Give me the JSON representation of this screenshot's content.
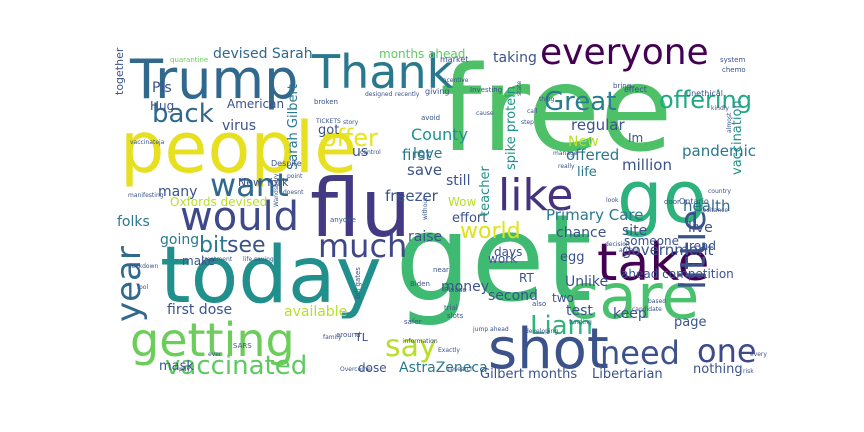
{
  "wordcloud": {
    "words": [
      {
        "t": "free",
        "c": "#4ec068"
      },
      {
        "t": "get",
        "c": "#3fba72"
      },
      {
        "t": "today",
        "c": "#21908c"
      },
      {
        "t": "people",
        "c": "#e6e021"
      },
      {
        "t": "flu",
        "c": "#443a83"
      },
      {
        "t": "Trump",
        "c": "#31688e"
      },
      {
        "t": "care",
        "c": "#4ac16d"
      },
      {
        "t": "go",
        "c": "#2db27d"
      },
      {
        "t": "Thank",
        "c": "#2a788e"
      },
      {
        "t": "shot",
        "c": "#3b528b"
      },
      {
        "t": "take",
        "c": "#440154"
      },
      {
        "t": "getting",
        "c": "#6ccd5a"
      },
      {
        "t": "would",
        "c": "#3e4989"
      },
      {
        "t": "like",
        "c": "#46337f"
      },
      {
        "t": "everyone",
        "c": "#440154"
      },
      {
        "t": "want",
        "c": "#31688e"
      },
      {
        "t": "much",
        "c": "#3f4788"
      },
      {
        "t": "little",
        "c": "#3b528b"
      },
      {
        "t": "need",
        "c": "#3b528b"
      },
      {
        "t": "one",
        "c": "#3e4a89"
      },
      {
        "t": "year",
        "c": "#31688e"
      },
      {
        "t": "say",
        "c": "#b8de29"
      },
      {
        "t": "vaccinated",
        "c": "#5ec962"
      },
      {
        "t": "back",
        "c": "#31688e"
      },
      {
        "t": "Great",
        "c": "#287d8e"
      },
      {
        "t": "offer",
        "c": "#e7e419"
      },
      {
        "t": "offering",
        "c": "#22a884"
      },
      {
        "t": "Liam",
        "c": "#2fb47c"
      },
      {
        "t": "bit",
        "c": "#2a788e"
      },
      {
        "t": "see",
        "c": "#3b528b"
      },
      {
        "t": "world",
        "c": "#dfe318"
      },
      {
        "t": "Pls",
        "c": "#3b528b"
      },
      {
        "t": "Hug",
        "c": "#3b528b"
      },
      {
        "t": "devised Sarah",
        "c": "#31688e"
      },
      {
        "t": "months ahead",
        "c": "#5ec962"
      },
      {
        "t": "taking",
        "c": "#3b528b"
      },
      {
        "t": "together",
        "c": "#3b528b"
      },
      {
        "t": "American",
        "c": "#3b528b"
      },
      {
        "t": "virus",
        "c": "#3b528b"
      },
      {
        "t": "Sarah Gilbert",
        "c": "#2a788e"
      },
      {
        "t": "got",
        "c": "#3b528b"
      },
      {
        "t": "County",
        "c": "#21918c"
      },
      {
        "t": "us",
        "c": "#3b528b"
      },
      {
        "t": "love",
        "c": "#2a788e"
      },
      {
        "t": "first",
        "c": "#2a788e"
      },
      {
        "t": "save",
        "c": "#3b528b"
      },
      {
        "t": "regular",
        "c": "#3b528b"
      },
      {
        "t": "New",
        "c": "#b8de29"
      },
      {
        "t": "offered",
        "c": "#2a788e"
      },
      {
        "t": "spike protein",
        "c": "#21918c"
      },
      {
        "t": "million",
        "c": "#3b528b"
      },
      {
        "t": "pandemic",
        "c": "#2a788e"
      },
      {
        "t": "vaccination",
        "c": "#21918c"
      },
      {
        "t": "life",
        "c": "#2a788e"
      },
      {
        "t": "health",
        "c": "#31688e"
      },
      {
        "t": "live",
        "c": "#3b528b"
      },
      {
        "t": "site",
        "c": "#3b528b"
      },
      {
        "t": "Im",
        "c": "#3b528b"
      },
      {
        "t": "freezer",
        "c": "#3b528b"
      },
      {
        "t": "still",
        "c": "#3b528b"
      },
      {
        "t": "many",
        "c": "#3b528b"
      },
      {
        "t": "New York",
        "c": "#3b528b"
      },
      {
        "t": "Oxfords devised",
        "c": "#b8de29"
      },
      {
        "t": "folks",
        "c": "#2a788e"
      },
      {
        "t": "Wow",
        "c": "#b8de29"
      },
      {
        "t": "effort",
        "c": "#3b528b"
      },
      {
        "t": "teacher",
        "c": "#21918c"
      },
      {
        "t": "Primary Care",
        "c": "#2a788e"
      },
      {
        "t": "chance",
        "c": "#3b528b"
      },
      {
        "t": "government",
        "c": "#3b528b"
      },
      {
        "t": "going",
        "c": "#2a788e"
      },
      {
        "t": "raise",
        "c": "#3b528b"
      },
      {
        "t": "egg",
        "c": "#3b528b"
      },
      {
        "t": "someone",
        "c": "#3b528b"
      },
      {
        "t": "read",
        "c": "#3b528b"
      },
      {
        "t": "make",
        "c": "#3b528b"
      },
      {
        "t": "work",
        "c": "#3b528b"
      },
      {
        "t": "money",
        "c": "#3b528b"
      },
      {
        "t": "RT",
        "c": "#3b528b"
      },
      {
        "t": "Unlike",
        "c": "#3b528b"
      },
      {
        "t": "ahead competition",
        "c": "#3b528b"
      },
      {
        "t": "two",
        "c": "#3b528b"
      },
      {
        "t": "second",
        "c": "#3b528b"
      },
      {
        "t": "available",
        "c": "#b8de29"
      },
      {
        "t": "first dose",
        "c": "#3b528b"
      },
      {
        "t": "test",
        "c": "#3b528b"
      },
      {
        "t": "keep",
        "c": "#3b528b"
      },
      {
        "t": "page",
        "c": "#3b528b"
      },
      {
        "t": "mask",
        "c": "#3b528b"
      },
      {
        "t": "dose",
        "c": "#3b528b"
      },
      {
        "t": "AstraZeneca",
        "c": "#2a788e"
      },
      {
        "t": "Gilbert months",
        "c": "#3b528b"
      },
      {
        "t": "Libertarian",
        "c": "#3b528b"
      },
      {
        "t": "nothing",
        "c": "#3b528b"
      },
      {
        "t": "days",
        "c": "#3b528b"
      },
      {
        "t": "TL",
        "c": "#3b528b"
      },
      {
        "t": "quarantine",
        "c": "#6ccd5a"
      },
      {
        "t": "market",
        "c": "#3b528b"
      },
      {
        "t": "Investing",
        "c": "#3b528b"
      },
      {
        "t": "giving",
        "c": "#3b528b"
      },
      {
        "t": "designed",
        "c": "#3b528b"
      },
      {
        "t": "recently",
        "c": "#3b528b"
      },
      {
        "t": "Ontario",
        "c": "#3b528b"
      },
      {
        "t": "effect",
        "c": "#3b528b"
      },
      {
        "t": "unethical",
        "c": "#3b528b"
      },
      {
        "t": "bring",
        "c": "#3b528b"
      },
      {
        "t": "door",
        "c": "#3b528b"
      },
      {
        "t": "system",
        "c": "#3b528b"
      },
      {
        "t": "chemo",
        "c": "#3b528b"
      },
      {
        "t": "TICKETS",
        "c": "#3b528b"
      },
      {
        "t": "broken",
        "c": "#3b528b"
      },
      {
        "t": "story",
        "c": "#3b528b"
      },
      {
        "t": "control",
        "c": "#3b528b"
      },
      {
        "t": "Despite",
        "c": "#3b528b"
      },
      {
        "t": "point",
        "c": "#3b528b"
      },
      {
        "t": "lockdown",
        "c": "#3b528b"
      },
      {
        "t": "treatment",
        "c": "#3b528b"
      },
      {
        "t": "life saving",
        "c": "#3b528b"
      },
      {
        "t": "manifesting",
        "c": "#3b528b"
      },
      {
        "t": "vaccinateja",
        "c": "#3b528b"
      },
      {
        "t": "bill gates",
        "c": "#3b528b"
      },
      {
        "t": "Biden",
        "c": "#3b528b"
      },
      {
        "t": "Please",
        "c": "#3b528b"
      },
      {
        "t": "near",
        "c": "#3b528b"
      },
      {
        "t": "trial",
        "c": "#3b528b"
      },
      {
        "t": "slots",
        "c": "#3b528b"
      },
      {
        "t": "also",
        "c": "#3b528b"
      },
      {
        "t": "safer",
        "c": "#3b528b"
      },
      {
        "t": "family",
        "c": "#3b528b"
      },
      {
        "t": "around",
        "c": "#3b528b"
      },
      {
        "t": "information",
        "c": "#3b528b"
      },
      {
        "t": "Exactly",
        "c": "#3b528b"
      },
      {
        "t": "research",
        "c": "#3b528b"
      },
      {
        "t": "developing",
        "c": "#3b528b"
      },
      {
        "t": "funding",
        "c": "#3b528b"
      },
      {
        "t": "candidate",
        "c": "#3b528b"
      },
      {
        "t": "decision",
        "c": "#3b528b"
      },
      {
        "t": "accept",
        "c": "#3b528b"
      },
      {
        "t": "jump ahead",
        "c": "#3b528b"
      },
      {
        "t": "Overcome",
        "c": "#3b528b"
      },
      {
        "t": "pay",
        "c": "#3b528b"
      },
      {
        "t": "ever",
        "c": "#3b528b"
      },
      {
        "t": "SARS",
        "c": "#3b528b"
      },
      {
        "t": "avoid",
        "c": "#3b528b"
      },
      {
        "t": "cause",
        "c": "#3b528b"
      },
      {
        "t": "manage",
        "c": "#3b528b"
      },
      {
        "t": "really",
        "c": "#3b528b"
      },
      {
        "t": "anyone",
        "c": "#3b528b"
      },
      {
        "t": "without",
        "c": "#3b528b"
      },
      {
        "t": "almost",
        "c": "#3b528b"
      },
      {
        "t": "kindly",
        "c": "#3b528b"
      },
      {
        "t": "incentive",
        "c": "#3b528b"
      },
      {
        "t": "doesnt",
        "c": "#3b528b"
      },
      {
        "t": "country",
        "c": "#3b528b"
      },
      {
        "t": "hesitance",
        "c": "#3b528b"
      },
      {
        "t": "step",
        "c": "#3b528b"
      },
      {
        "t": "state",
        "c": "#3b528b"
      },
      {
        "t": "thing",
        "c": "#3b528b"
      },
      {
        "t": "call",
        "c": "#3b528b"
      },
      {
        "t": "Wandsbory",
        "c": "#3b528b"
      },
      {
        "t": "based",
        "c": "#3b528b"
      },
      {
        "t": "risk",
        "c": "#3b528b"
      },
      {
        "t": "every",
        "c": "#3b528b"
      },
      {
        "t": "fool",
        "c": "#3b528b"
      },
      {
        "t": "look",
        "c": "#3b528b"
      }
    ]
  }
}
